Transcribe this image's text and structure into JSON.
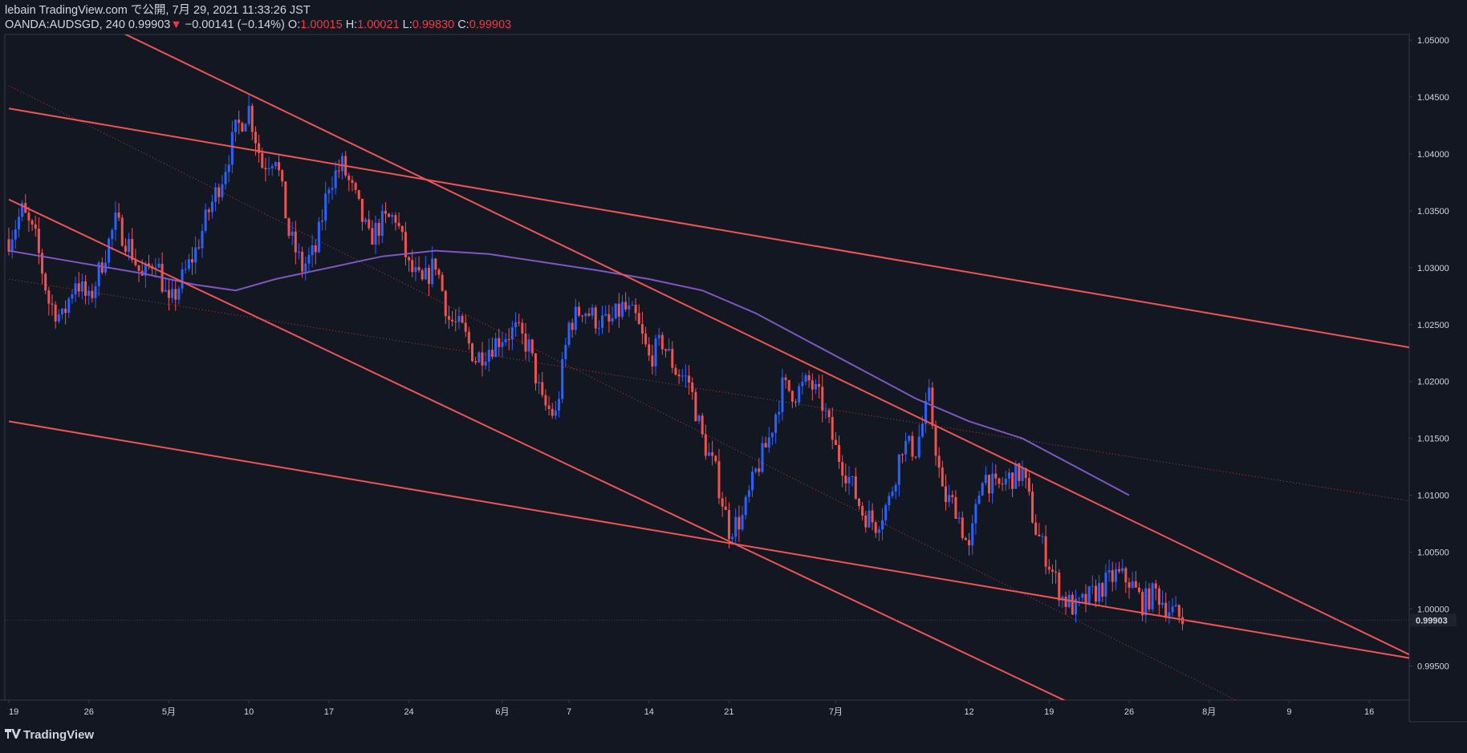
{
  "header": {
    "publish_line": "lebain TradingView.com で公開, 7月 29, 2021 11:33:26 JST",
    "symbol": "OANDA:AUDSGD, 240",
    "last_price": "0.99903",
    "change_arrow": "▼",
    "change": "−0.00141 (−0.14%)",
    "open_label": "O:",
    "open": "1.00015",
    "high_label": "H:",
    "high": "1.00021",
    "low_label": "L:",
    "low": "0.99830",
    "close_label": "C:",
    "close": "0.99903"
  },
  "footer": {
    "brand": "TradingView",
    "logo_icon": "tradingview-logo-icon"
  },
  "colors": {
    "background": "#131722",
    "up": "#2962ff",
    "down": "#ef5350",
    "trendline": "#f05454",
    "ma": "#7e57c2",
    "text": "#d1d4dc",
    "grid_border": "#363a45"
  },
  "chart_data": {
    "type": "candlestick",
    "symbol": "OANDA:AUDSGD",
    "interval": "240",
    "ylim": [
      0.992,
      1.0505
    ],
    "y_ticks": [
      "1.05000",
      "1.04500",
      "1.04000",
      "1.03500",
      "1.03000",
      "1.02500",
      "1.02000",
      "1.01500",
      "1.01000",
      "1.00500",
      "1.00000",
      "0.99500"
    ],
    "y_tick_values": [
      1.05,
      1.045,
      1.04,
      1.035,
      1.03,
      1.025,
      1.02,
      1.015,
      1.01,
      1.005,
      1.0,
      0.995
    ],
    "current_price_label": "0.99903",
    "current_price": 0.99903,
    "x_domain": [
      0,
      105
    ],
    "x_ticks": [
      {
        "label": "19",
        "x": 0
      },
      {
        "label": "26",
        "x": 6
      },
      {
        "label": "5月",
        "x": 12
      },
      {
        "label": "10",
        "x": 18
      },
      {
        "label": "17",
        "x": 24
      },
      {
        "label": "24",
        "x": 30
      },
      {
        "label": "6月",
        "x": 37
      },
      {
        "label": "7",
        "x": 42
      },
      {
        "label": "14",
        "x": 48
      },
      {
        "label": "21",
        "x": 54
      },
      {
        "label": "7月",
        "x": 62
      },
      {
        "label": "12",
        "x": 72
      },
      {
        "label": "19",
        "x": 78
      },
      {
        "label": "26",
        "x": 84
      },
      {
        "label": "8月",
        "x": 90
      },
      {
        "label": "9",
        "x": 96
      },
      {
        "label": "16",
        "x": 102
      }
    ],
    "price_path": [
      [
        0,
        1.0325
      ],
      [
        1,
        1.035
      ],
      [
        2,
        1.0325
      ],
      [
        3,
        1.027
      ],
      [
        4,
        1.0255
      ],
      [
        5,
        1.029
      ],
      [
        6,
        1.027
      ],
      [
        7,
        1.0305
      ],
      [
        8,
        1.034
      ],
      [
        9,
        1.032
      ],
      [
        10,
        1.029
      ],
      [
        11,
        1.031
      ],
      [
        12,
        1.0265
      ],
      [
        13,
        1.029
      ],
      [
        14,
        1.0315
      ],
      [
        15,
        1.035
      ],
      [
        16,
        1.038
      ],
      [
        17,
        1.042
      ],
      [
        18,
        1.044
      ],
      [
        19,
        1.039
      ],
      [
        20,
        1.04
      ],
      [
        21,
        1.033
      ],
      [
        22,
        1.03
      ],
      [
        23,
        1.0315
      ],
      [
        24,
        1.0375
      ],
      [
        25,
        1.039
      ],
      [
        26,
        1.036
      ],
      [
        27,
        1.0325
      ],
      [
        28,
        1.034
      ],
      [
        29,
        1.0345
      ],
      [
        30,
        1.03
      ],
      [
        31,
        1.0285
      ],
      [
        32,
        1.0305
      ],
      [
        33,
        1.0255
      ],
      [
        34,
        1.0245
      ],
      [
        35,
        1.022
      ],
      [
        36,
        1.023
      ],
      [
        37,
        1.024
      ],
      [
        38,
        1.0245
      ],
      [
        39,
        1.023
      ],
      [
        40,
        1.018
      ],
      [
        41,
        1.017
      ],
      [
        42,
        1.025
      ],
      [
        43,
        1.0265
      ],
      [
        44,
        1.0255
      ],
      [
        45,
        1.025
      ],
      [
        46,
        1.0265
      ],
      [
        47,
        1.0255
      ],
      [
        48,
        1.022
      ],
      [
        49,
        1.0235
      ],
      [
        50,
        1.021
      ],
      [
        51,
        1.02
      ],
      [
        52,
        1.015
      ],
      [
        53,
        1.012
      ],
      [
        54,
        1.007
      ],
      [
        55,
        1.008
      ],
      [
        56,
        1.012
      ],
      [
        57,
        1.015
      ],
      [
        58,
        1.0195
      ],
      [
        59,
        1.019
      ],
      [
        60,
        1.02
      ],
      [
        61,
        1.018
      ],
      [
        62,
        1.014
      ],
      [
        63,
        1.0115
      ],
      [
        64,
        1.0085
      ],
      [
        65,
        1.0075
      ],
      [
        66,
        1.0095
      ],
      [
        67,
        1.0145
      ],
      [
        68,
        1.014
      ],
      [
        69,
        1.0185
      ],
      [
        70,
        1.01
      ],
      [
        71,
        1.009
      ],
      [
        72,
        1.005
      ],
      [
        73,
        1.012
      ],
      [
        74,
        1.0105
      ],
      [
        75,
        1.0115
      ],
      [
        76,
        1.012
      ],
      [
        77,
        1.007
      ],
      [
        78,
        1.004
      ],
      [
        79,
        1.001
      ],
      [
        80,
        1.0
      ],
      [
        81,
        1.001
      ],
      [
        82,
        1.002
      ],
      [
        83,
        1.003
      ],
      [
        84,
        1.0025
      ],
      [
        85,
        1.0005
      ],
      [
        86,
        1.0015
      ],
      [
        87,
        1.0
      ],
      [
        88,
        0.999
      ]
    ],
    "moving_average": {
      "name": "MA",
      "points": [
        [
          0,
          1.0315
        ],
        [
          5,
          1.0305
        ],
        [
          10,
          1.0295
        ],
        [
          14,
          1.0285
        ],
        [
          17,
          1.028
        ],
        [
          20,
          1.029
        ],
        [
          24,
          1.03
        ],
        [
          28,
          1.031
        ],
        [
          32,
          1.0315
        ],
        [
          36,
          1.0312
        ],
        [
          40,
          1.0305
        ],
        [
          44,
          1.0298
        ],
        [
          48,
          1.029
        ],
        [
          52,
          1.028
        ],
        [
          56,
          1.026
        ],
        [
          60,
          1.0235
        ],
        [
          64,
          1.021
        ],
        [
          68,
          1.0185
        ],
        [
          72,
          1.0165
        ],
        [
          76,
          1.015
        ],
        [
          80,
          1.0125
        ],
        [
          84,
          1.01
        ]
      ]
    },
    "trendlines": [
      {
        "style": "solid",
        "from": [
          7,
          1.0515
        ],
        "to": [
          105,
          0.996
        ]
      },
      {
        "style": "solid",
        "from": [
          0,
          1.044
        ],
        "to": [
          105,
          1.023
        ]
      },
      {
        "style": "solid",
        "from": [
          0,
          1.036
        ],
        "to": [
          80,
          0.9915
        ]
      },
      {
        "style": "solid",
        "from": [
          0,
          1.0165
        ],
        "to": [
          105,
          0.9957
        ]
      },
      {
        "style": "dotted",
        "from": [
          0,
          1.046
        ],
        "to": [
          92,
          0.992
        ]
      },
      {
        "style": "dotted",
        "from": [
          0,
          1.029
        ],
        "to": [
          105,
          1.0095
        ]
      }
    ]
  }
}
